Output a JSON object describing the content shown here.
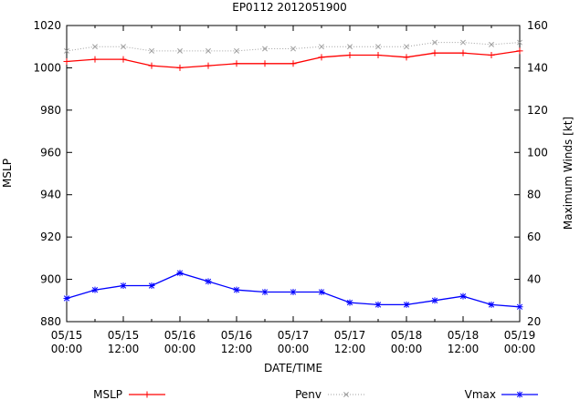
{
  "chart_data": {
    "type": "line",
    "title": "EP0112 2012051900",
    "xlabel": "DATE/TIME",
    "ylabel": "MSLP",
    "y2label": "Maximum Winds [kt]",
    "x_tick_labels": [
      [
        "05/15",
        "00:00"
      ],
      [
        "05/15",
        "12:00"
      ],
      [
        "05/16",
        "00:00"
      ],
      [
        "05/16",
        "12:00"
      ],
      [
        "05/17",
        "00:00"
      ],
      [
        "05/17",
        "12:00"
      ],
      [
        "05/18",
        "00:00"
      ],
      [
        "05/18",
        "12:00"
      ],
      [
        "05/19",
        "00:00"
      ]
    ],
    "x_hours": [
      0,
      6,
      12,
      18,
      24,
      30,
      36,
      42,
      48,
      54,
      60,
      66,
      72,
      78,
      84,
      90,
      96
    ],
    "xlim": [
      0,
      96
    ],
    "ylim": [
      880,
      1020
    ],
    "y_ticks": [
      880,
      900,
      920,
      940,
      960,
      980,
      1000,
      1020
    ],
    "y2lim": [
      20,
      160
    ],
    "y2_ticks": [
      20,
      40,
      60,
      80,
      100,
      120,
      140,
      160
    ],
    "grid": false,
    "legend_position": "bottom",
    "series": [
      {
        "name": "MSLP",
        "axis": "y",
        "color": "#ff0000",
        "marker": "plus",
        "style": "solid",
        "values": [
          1003,
          1004,
          1004,
          1001,
          1000,
          1001,
          1002,
          1002,
          1002,
          1005,
          1006,
          1006,
          1005,
          1007,
          1007,
          1006,
          1008
        ]
      },
      {
        "name": "Penv",
        "axis": "y",
        "color": "#a0a0a0",
        "marker": "cross",
        "style": "dotted",
        "values": [
          1008,
          1010,
          1010,
          1008,
          1008,
          1008,
          1008,
          1009,
          1009,
          1010,
          1010,
          1010,
          1010,
          1012,
          1012,
          1011,
          1012
        ]
      },
      {
        "name": "Vmax",
        "axis": "y2",
        "color": "#0000ff",
        "marker": "star",
        "style": "solid",
        "values": [
          31,
          35,
          37,
          37,
          43,
          39,
          35,
          34,
          34,
          34,
          29,
          28,
          28,
          30,
          32,
          28,
          27
        ]
      }
    ]
  }
}
